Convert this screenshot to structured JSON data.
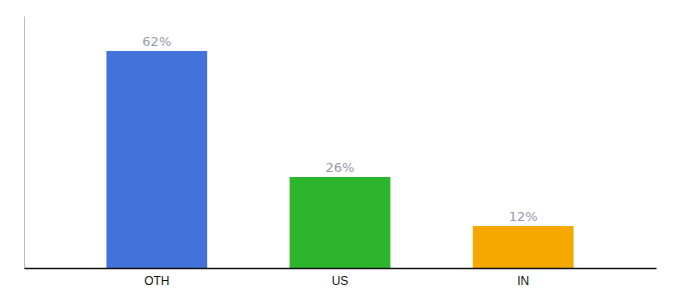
{
  "chart_data": {
    "type": "bar",
    "categories": [
      "OTH",
      "US",
      "IN"
    ],
    "values": [
      62,
      26,
      12
    ],
    "value_labels": [
      "62%",
      "26%",
      "12%"
    ],
    "colors": [
      "#4472db",
      "#2db52d",
      "#f5a800"
    ],
    "ylim": [
      0,
      72
    ],
    "data_labels": true,
    "tick_labels": "x",
    "grid": false
  }
}
